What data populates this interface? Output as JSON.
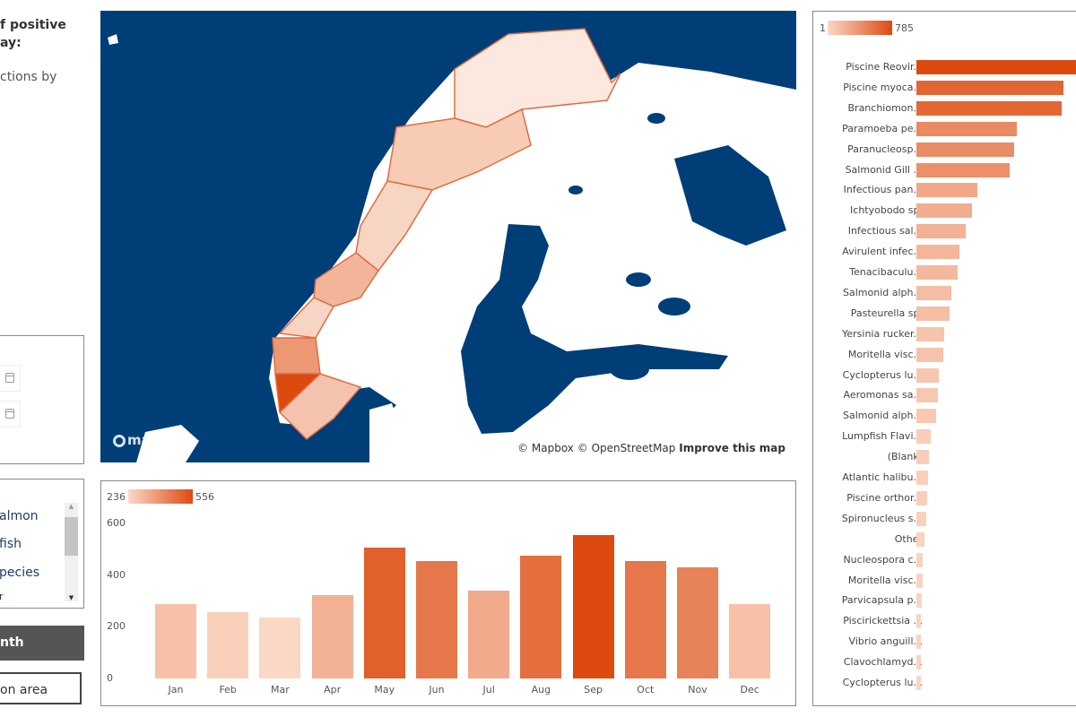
{
  "left_panel": {
    "title_line1": "f positive",
    "title_line2": "ay:",
    "subtitle": "ctions by",
    "species_list": [
      "almon",
      " fish",
      "pecies",
      "r"
    ],
    "month_button": "nth",
    "area_button": "on area"
  },
  "map": {
    "attribution_mapbox": "© Mapbox",
    "attribution_osm": "© OpenStreetMap",
    "improve_link": "Improve this map",
    "logo": "mapbox",
    "sea_color": "#003e78",
    "land_color": "#ffffff"
  },
  "monthly_chart": {
    "legend_min": "236",
    "legend_max": "556",
    "color_min": "#fbd8c6",
    "color_max": "#dc4a10"
  },
  "pathogen_chart": {
    "legend_min": "1",
    "legend_max": "785",
    "color_min": "#fbd8c6",
    "color_max": "#dc4a10"
  },
  "chart_data": [
    {
      "type": "bar",
      "categories": [
        "Jan",
        "Feb",
        "Mar",
        "Apr",
        "May",
        "Jun",
        "Jul",
        "Aug",
        "Sep",
        "Oct",
        "Nov",
        "Dec"
      ],
      "values": [
        288,
        257,
        236,
        322,
        506,
        454,
        340,
        475,
        556,
        454,
        430,
        288
      ],
      "ylim": [
        0,
        600
      ],
      "yticks": [
        "0",
        "200",
        "400",
        "600"
      ],
      "xlabel": "",
      "ylabel": ""
    },
    {
      "type": "bar",
      "orientation": "horizontal",
      "categories": [
        "Piscine Reovir...",
        "Piscine myoca...",
        "Branchiomon...",
        "Paramoeba pe...",
        "Paranucleosp...",
        "Salmonid Gill ...",
        "Infectious pan...",
        "Ichtyobodo sp.",
        "Infectious sal...",
        "Avirulent infec...",
        "Tenacibaculu...",
        "Salmonid alph...",
        "Pasteurella sp.",
        "Yersinia rucker...",
        "Moritella visc...",
        "Cyclopterus lu...",
        "Aeromonas sa...",
        "Salmonid alph...",
        "Lumpfish Flavi...",
        "(Blank)",
        "Atlantic halibu...",
        "Piscine orthor...",
        "Spironucleus s...",
        "Other",
        "Nucleospora c...",
        "Moritella visc...",
        "Parvicapsula p...",
        "Piscirickettsia ...",
        "Vibrio anguill...",
        "Clavochlamyd...",
        "Cyclopterus lu..."
      ],
      "values": [
        785,
        632,
        624,
        432,
        420,
        400,
        263,
        240,
        212,
        185,
        177,
        149,
        141,
        118,
        114,
        98,
        94,
        86,
        63,
        55,
        51,
        47,
        43,
        35,
        27,
        27,
        24,
        20,
        20,
        20,
        20
      ],
      "xlim": [
        0,
        785
      ]
    }
  ]
}
